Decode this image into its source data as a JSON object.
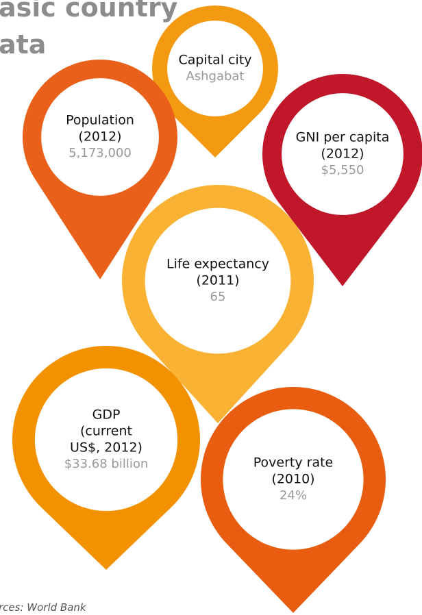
{
  "header": {
    "title_lines": [
      "asic country",
      "ata"
    ]
  },
  "pins": [
    {
      "label_lines": [
        "Capital city"
      ],
      "value": "Ashgabat",
      "color": "#f39a12"
    },
    {
      "label_lines": [
        "Population",
        "(2012)"
      ],
      "value": "5,173,000",
      "color": "#e8601a"
    },
    {
      "label_lines": [
        "GNI per capita",
        "(2012)"
      ],
      "value": "$5,550",
      "color": "#c0172a"
    },
    {
      "label_lines": [
        "Life expectancy",
        "(2011)"
      ],
      "value": "65",
      "color": "#f9b233"
    },
    {
      "label_lines": [
        "GDP",
        "(current",
        "US$, 2012)"
      ],
      "value": "$33.68 billion",
      "color": "#f39200"
    },
    {
      "label_lines": [
        "Poverty rate",
        "(2010)"
      ],
      "value": "24%",
      "color": "#e85d10"
    }
  ],
  "footer": {
    "source": "rces: World Bank"
  }
}
